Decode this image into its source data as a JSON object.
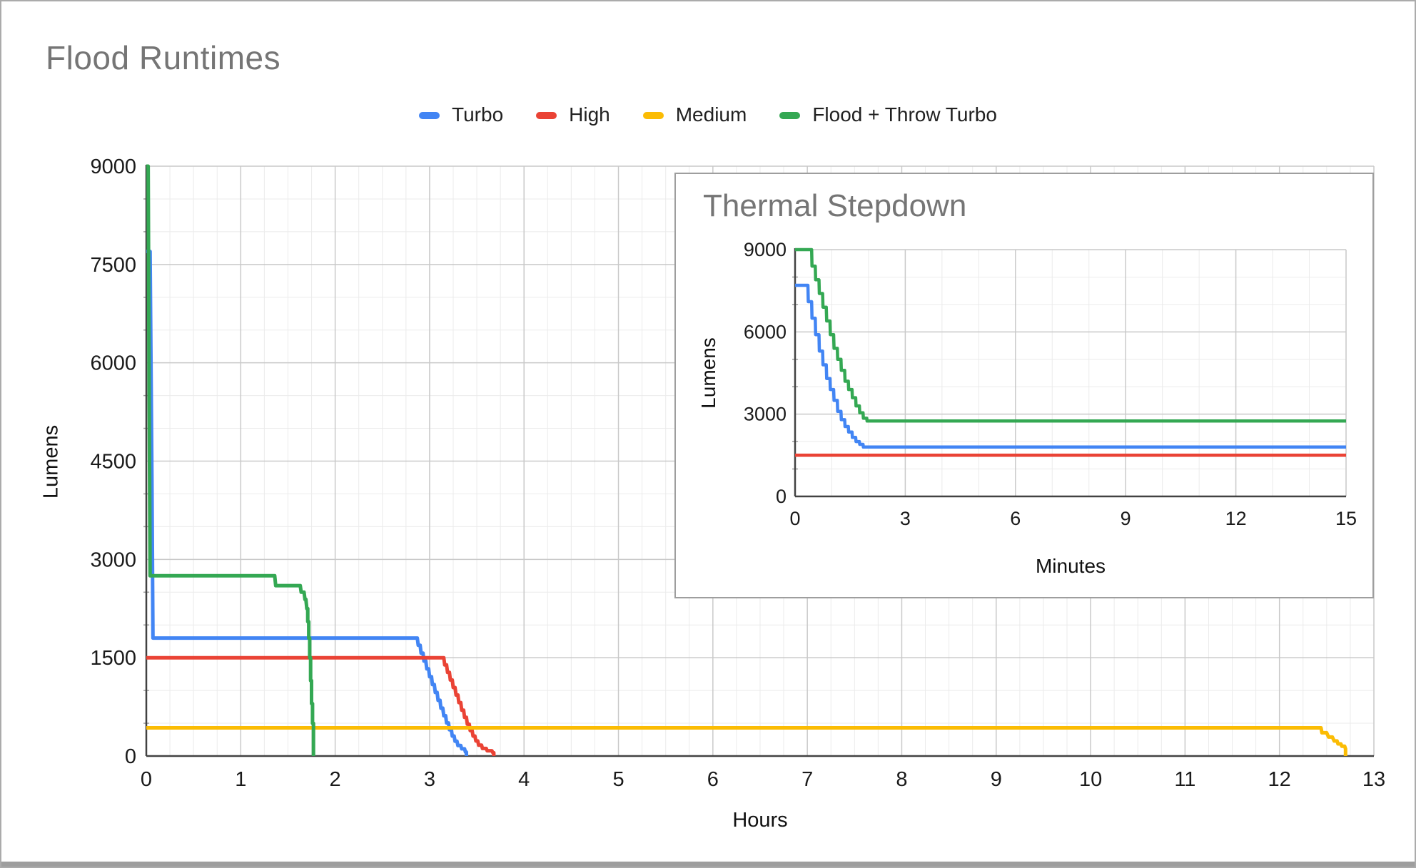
{
  "theme": {
    "background": "#ffffff",
    "title_color": "#757575",
    "tick_color": "#1a1a1a",
    "axis_color": "#424242",
    "grid_major": "#c9c9c9",
    "grid_minor": "#ebebeb",
    "minor_tick": "#9e9e9e",
    "panel_border": "#9e9e9e"
  },
  "chart_data": [
    {
      "id": "main",
      "type": "line",
      "title": "Flood Runtimes",
      "xlabel": "Hours",
      "ylabel": "Lumens",
      "xlim": [
        0,
        13
      ],
      "ylim": [
        0,
        9000
      ],
      "xticks": [
        0,
        1,
        2,
        3,
        4,
        5,
        6,
        7,
        8,
        9,
        10,
        11,
        12,
        13
      ],
      "yticks": [
        0,
        1500,
        3000,
        4500,
        6000,
        7500,
        9000
      ],
      "x_minor_step": 0.25,
      "y_minor_step": 500,
      "grid": true,
      "legend_position": "top",
      "series": [
        {
          "name": "Turbo",
          "color": "#4285F4",
          "points": [
            [
              0,
              7700
            ],
            [
              0.04,
              7700
            ],
            [
              0.06,
              4200
            ],
            [
              0.07,
              1800
            ],
            [
              2.87,
              1800
            ],
            [
              2.88,
              1690
            ],
            [
              2.9,
              1690
            ],
            [
              2.91,
              1570
            ],
            [
              2.93,
              1570
            ],
            [
              2.94,
              1450
            ],
            [
              2.96,
              1450
            ],
            [
              2.97,
              1330
            ],
            [
              2.99,
              1330
            ],
            [
              3.0,
              1210
            ],
            [
              3.02,
              1210
            ],
            [
              3.03,
              1090
            ],
            [
              3.05,
              1090
            ],
            [
              3.06,
              970
            ],
            [
              3.08,
              970
            ],
            [
              3.09,
              850
            ],
            [
              3.11,
              850
            ],
            [
              3.12,
              730
            ],
            [
              3.14,
              730
            ],
            [
              3.15,
              615
            ],
            [
              3.17,
              615
            ],
            [
              3.18,
              505
            ],
            [
              3.2,
              505
            ],
            [
              3.21,
              400
            ],
            [
              3.23,
              400
            ],
            [
              3.24,
              305
            ],
            [
              3.26,
              305
            ],
            [
              3.27,
              225
            ],
            [
              3.29,
              225
            ],
            [
              3.3,
              160
            ],
            [
              3.33,
              160
            ],
            [
              3.34,
              110
            ],
            [
              3.37,
              110
            ],
            [
              3.38,
              60
            ],
            [
              3.39,
              60
            ],
            [
              3.39,
              0
            ]
          ]
        },
        {
          "name": "High",
          "color": "#EA4335",
          "points": [
            [
              0,
              1500
            ],
            [
              3.15,
              1500
            ],
            [
              3.16,
              1390
            ],
            [
              3.18,
              1390
            ],
            [
              3.19,
              1275
            ],
            [
              3.21,
              1275
            ],
            [
              3.22,
              1160
            ],
            [
              3.24,
              1160
            ],
            [
              3.25,
              1045
            ],
            [
              3.27,
              1045
            ],
            [
              3.28,
              930
            ],
            [
              3.3,
              930
            ],
            [
              3.31,
              815
            ],
            [
              3.33,
              815
            ],
            [
              3.34,
              700
            ],
            [
              3.36,
              700
            ],
            [
              3.37,
              590
            ],
            [
              3.39,
              590
            ],
            [
              3.4,
              485
            ],
            [
              3.42,
              485
            ],
            [
              3.43,
              390
            ],
            [
              3.45,
              390
            ],
            [
              3.46,
              305
            ],
            [
              3.48,
              305
            ],
            [
              3.49,
              230
            ],
            [
              3.51,
              230
            ],
            [
              3.52,
              165
            ],
            [
              3.55,
              165
            ],
            [
              3.56,
              115
            ],
            [
              3.6,
              115
            ],
            [
              3.61,
              80
            ],
            [
              3.66,
              80
            ],
            [
              3.67,
              50
            ],
            [
              3.68,
              50
            ],
            [
              3.68,
              0
            ]
          ]
        },
        {
          "name": "Medium",
          "color": "#FBBC04",
          "points": [
            [
              0,
              430
            ],
            [
              12.44,
              430
            ],
            [
              12.45,
              355
            ],
            [
              12.5,
              355
            ],
            [
              12.52,
              290
            ],
            [
              12.56,
              290
            ],
            [
              12.58,
              230
            ],
            [
              12.61,
              230
            ],
            [
              12.62,
              185
            ],
            [
              12.65,
              185
            ],
            [
              12.66,
              150
            ],
            [
              12.69,
              150
            ],
            [
              12.7,
              110
            ],
            [
              12.7,
              0
            ]
          ]
        },
        {
          "name": "Flood + Throw Turbo",
          "color": "#34A853",
          "points": [
            [
              0,
              9000
            ],
            [
              0.02,
              9000
            ],
            [
              0.03,
              5500
            ],
            [
              0.04,
              2750
            ],
            [
              1.36,
              2750
            ],
            [
              1.37,
              2600
            ],
            [
              1.63,
              2600
            ],
            [
              1.64,
              2500
            ],
            [
              1.67,
              2500
            ],
            [
              1.68,
              2390
            ],
            [
              1.69,
              2390
            ],
            [
              1.7,
              2250
            ],
            [
              1.71,
              2250
            ],
            [
              1.71,
              2050
            ],
            [
              1.72,
              2050
            ],
            [
              1.72,
              1800
            ],
            [
              1.73,
              1800
            ],
            [
              1.73,
              1500
            ],
            [
              1.74,
              1500
            ],
            [
              1.74,
              1150
            ],
            [
              1.75,
              1150
            ],
            [
              1.75,
              800
            ],
            [
              1.76,
              800
            ],
            [
              1.76,
              500
            ],
            [
              1.77,
              500
            ],
            [
              1.77,
              0
            ]
          ]
        }
      ]
    },
    {
      "id": "inset",
      "type": "line",
      "title": "Thermal Stepdown",
      "xlabel": "Minutes",
      "ylabel": "Lumens",
      "xlim": [
        0,
        15
      ],
      "ylim": [
        0,
        9000
      ],
      "xticks": [
        0,
        3,
        6,
        9,
        12,
        15
      ],
      "yticks": [
        0,
        3000,
        6000,
        9000
      ],
      "x_minor_step": 1,
      "y_minor_step": 1000,
      "grid": true,
      "legend_position": "none",
      "series": [
        {
          "name": "Turbo",
          "color": "#4285F4",
          "points": [
            [
              0,
              7700
            ],
            [
              0.35,
              7700
            ],
            [
              0.36,
              7100
            ],
            [
              0.45,
              7100
            ],
            [
              0.46,
              6500
            ],
            [
              0.55,
              6500
            ],
            [
              0.56,
              5900
            ],
            [
              0.65,
              5900
            ],
            [
              0.66,
              5300
            ],
            [
              0.75,
              5300
            ],
            [
              0.76,
              4800
            ],
            [
              0.85,
              4800
            ],
            [
              0.86,
              4300
            ],
            [
              0.95,
              4300
            ],
            [
              0.96,
              3900
            ],
            [
              1.05,
              3900
            ],
            [
              1.06,
              3500
            ],
            [
              1.15,
              3500
            ],
            [
              1.16,
              3100
            ],
            [
              1.25,
              3100
            ],
            [
              1.26,
              2800
            ],
            [
              1.35,
              2800
            ],
            [
              1.36,
              2550
            ],
            [
              1.45,
              2550
            ],
            [
              1.46,
              2350
            ],
            [
              1.55,
              2350
            ],
            [
              1.56,
              2150
            ],
            [
              1.65,
              2150
            ],
            [
              1.66,
              2000
            ],
            [
              1.75,
              2000
            ],
            [
              1.76,
              1900
            ],
            [
              1.85,
              1900
            ],
            [
              1.86,
              1800
            ],
            [
              15,
              1800
            ]
          ]
        },
        {
          "name": "High",
          "color": "#EA4335",
          "points": [
            [
              0,
              1500
            ],
            [
              15,
              1500
            ]
          ]
        },
        {
          "name": "Flood + Throw Turbo",
          "color": "#34A853",
          "points": [
            [
              0,
              9000
            ],
            [
              0.45,
              9000
            ],
            [
              0.46,
              8400
            ],
            [
              0.55,
              8400
            ],
            [
              0.56,
              7900
            ],
            [
              0.65,
              7900
            ],
            [
              0.66,
              7400
            ],
            [
              0.75,
              7400
            ],
            [
              0.76,
              6900
            ],
            [
              0.85,
              6900
            ],
            [
              0.86,
              6400
            ],
            [
              0.95,
              6400
            ],
            [
              0.96,
              5900
            ],
            [
              1.05,
              5900
            ],
            [
              1.06,
              5400
            ],
            [
              1.15,
              5400
            ],
            [
              1.16,
              5000
            ],
            [
              1.25,
              5000
            ],
            [
              1.26,
              4600
            ],
            [
              1.35,
              4600
            ],
            [
              1.36,
              4200
            ],
            [
              1.45,
              4200
            ],
            [
              1.46,
              3900
            ],
            [
              1.55,
              3900
            ],
            [
              1.56,
              3600
            ],
            [
              1.65,
              3600
            ],
            [
              1.66,
              3300
            ],
            [
              1.75,
              3300
            ],
            [
              1.76,
              3050
            ],
            [
              1.85,
              3050
            ],
            [
              1.86,
              2850
            ],
            [
              1.95,
              2850
            ],
            [
              1.96,
              2750
            ],
            [
              15,
              2750
            ]
          ]
        }
      ]
    }
  ],
  "legend": {
    "items": [
      {
        "label": "Turbo",
        "color": "#4285F4"
      },
      {
        "label": "High",
        "color": "#EA4335"
      },
      {
        "label": "Medium",
        "color": "#FBBC04"
      },
      {
        "label": "Flood + Throw Turbo",
        "color": "#34A853"
      }
    ]
  }
}
